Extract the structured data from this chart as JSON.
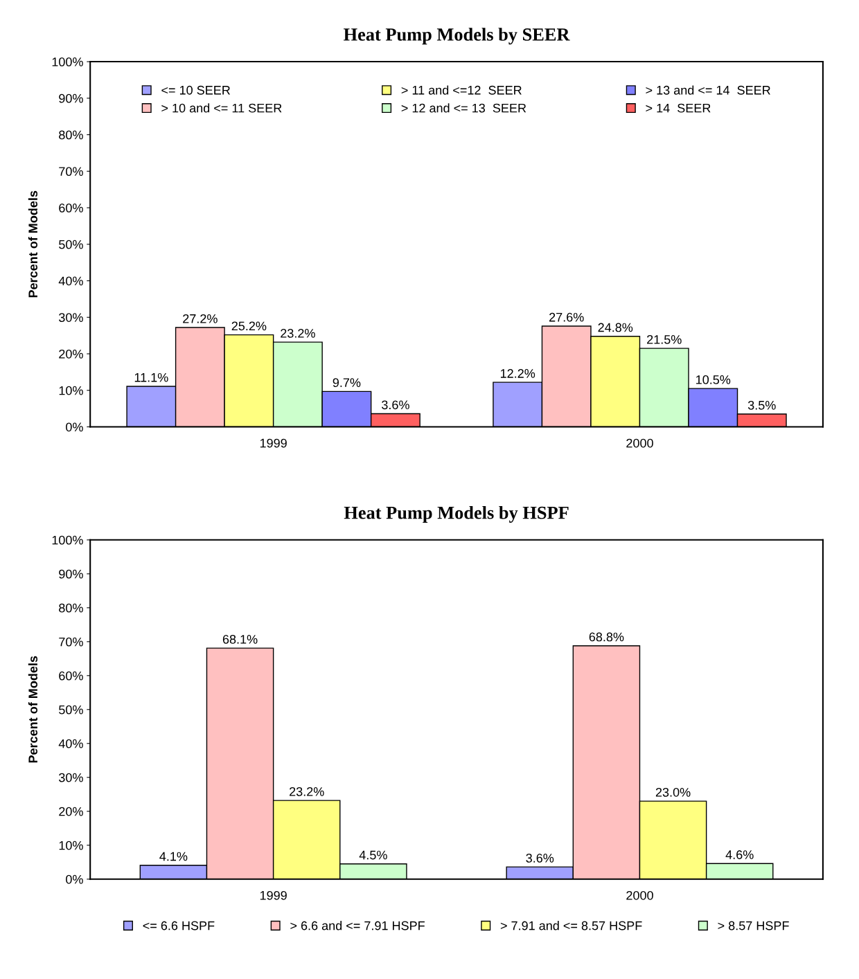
{
  "chart_data": [
    {
      "type": "bar",
      "title": "Heat Pump Models by SEER",
      "ylabel": "Percent of Models",
      "categories": [
        "1999",
        "2000"
      ],
      "series": [
        {
          "name": "<= 10 SEER",
          "color": "#a0a0ff",
          "values": [
            11.1,
            12.2
          ]
        },
        {
          "name": "> 10 and <= 11 SEER",
          "color": "#ffc0c0",
          "values": [
            27.2,
            27.6
          ]
        },
        {
          "name": "> 11 and <=12  SEER",
          "color": "#ffff80",
          "values": [
            25.2,
            24.8
          ]
        },
        {
          "name": "> 12 and <= 13  SEER",
          "color": "#ccffcc",
          "values": [
            23.2,
            21.5
          ]
        },
        {
          "name": "> 13 and <= 14  SEER",
          "color": "#8080ff",
          "values": [
            9.7,
            10.5
          ]
        },
        {
          "name": "> 14  SEER",
          "color": "#ff6060",
          "values": [
            3.6,
            3.5
          ]
        }
      ],
      "ylim": [
        0,
        100
      ],
      "yticks": [
        {
          "value": 0,
          "label": "0%"
        },
        {
          "value": 10,
          "label": "10%"
        },
        {
          "value": 20,
          "label": "20%"
        },
        {
          "value": 30,
          "label": "30%"
        },
        {
          "value": 40,
          "label": "40%"
        },
        {
          "value": 50,
          "label": "50%"
        },
        {
          "value": 60,
          "label": "60%"
        },
        {
          "value": 70,
          "label": "70%"
        },
        {
          "value": 80,
          "label": "80%"
        },
        {
          "value": 90,
          "label": "90%"
        },
        {
          "value": 100,
          "label": "100%"
        }
      ],
      "value_labels": [
        [
          "11.1%",
          "12.2%"
        ],
        [
          "27.2%",
          "27.6%"
        ],
        [
          "25.2%",
          "24.8%"
        ],
        [
          "23.2%",
          "21.5%"
        ],
        [
          "9.7%",
          "10.5%"
        ],
        [
          "3.6%",
          "3.5%"
        ]
      ],
      "legend": "top",
      "grid": false
    },
    {
      "type": "bar",
      "title": "Heat Pump Models by HSPF",
      "ylabel": "Percent of Models",
      "categories": [
        "1999",
        "2000"
      ],
      "series": [
        {
          "name": "<= 6.6 HSPF",
          "color": "#a0a0ff",
          "values": [
            4.1,
            3.6
          ]
        },
        {
          "name": "> 6.6 and <= 7.91 HSPF",
          "color": "#ffc0c0",
          "values": [
            68.1,
            68.8
          ]
        },
        {
          "name": "> 7.91 and <= 8.57 HSPF",
          "color": "#ffff80",
          "values": [
            23.2,
            23.0
          ]
        },
        {
          "name": "> 8.57 HSPF",
          "color": "#ccffcc",
          "values": [
            4.5,
            4.6
          ]
        }
      ],
      "ylim": [
        0,
        100
      ],
      "yticks": [
        {
          "value": 0,
          "label": "0%"
        },
        {
          "value": 10,
          "label": "10%"
        },
        {
          "value": 20,
          "label": "20%"
        },
        {
          "value": 30,
          "label": "30%"
        },
        {
          "value": 40,
          "label": "40%"
        },
        {
          "value": 50,
          "label": "50%"
        },
        {
          "value": 60,
          "label": "60%"
        },
        {
          "value": 70,
          "label": "70%"
        },
        {
          "value": 80,
          "label": "80%"
        },
        {
          "value": 90,
          "label": "90%"
        },
        {
          "value": 100,
          "label": "100%"
        }
      ],
      "value_labels": [
        [
          "4.1%",
          "3.6%"
        ],
        [
          "68.1%",
          "68.8%"
        ],
        [
          "23.2%",
          "23.0%"
        ],
        [
          "4.5%",
          "4.6%"
        ]
      ],
      "legend": "bottom",
      "grid": false
    }
  ]
}
